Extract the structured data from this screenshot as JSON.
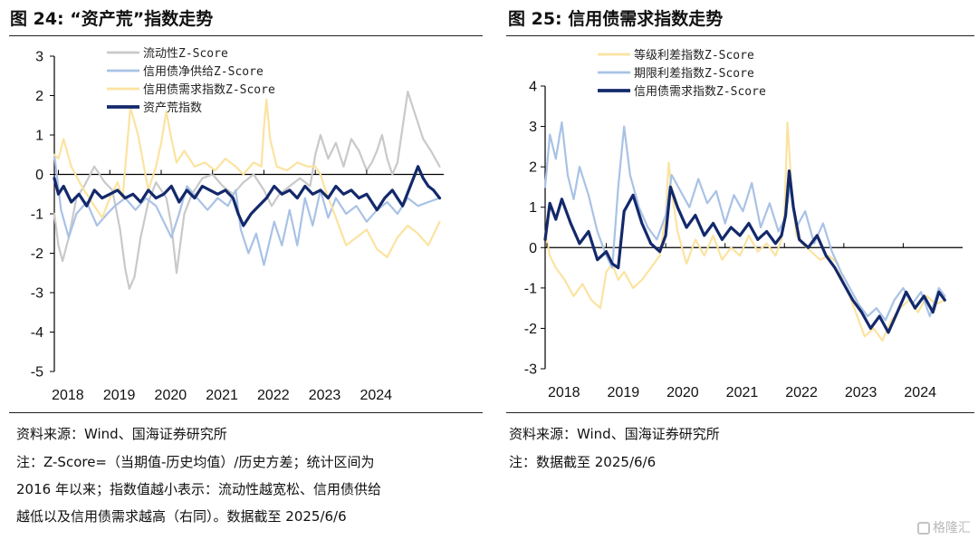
{
  "left": {
    "title": "图 24: “资产荒”指数走势",
    "source": "资料来源：Wind、国海证券研究所",
    "note": "注：Z-Score=（当期值-历史均值）/历史方差；统计区间为\n2016 年以来；指数值越小表示：流动性越宽松、信用债供给\n越低以及信用债需求越高（右同）。数据截至 2025/6/6"
  },
  "right": {
    "title": "图 25: 信用债需求指数走势",
    "source": "资料来源：Wind、国海证券研究所",
    "note": "注：数据截至 2025/6/6"
  },
  "watermark": {
    "text": "格隆汇"
  },
  "chart_data": [
    {
      "type": "line",
      "title": "“资产荒”指数走势",
      "x_ticks": [
        "2018",
        "2019",
        "2020",
        "2021",
        "2022",
        "2023",
        "2024"
      ],
      "x_range": [
        "2017-12",
        "2025-06"
      ],
      "ylim": [
        -5,
        3
      ],
      "y_ticks": [
        3,
        2,
        1,
        0,
        -1,
        -2,
        -3,
        -4,
        -5
      ],
      "zero_line": true,
      "legend_position": "top-center",
      "series": [
        {
          "name": "流动性Z-Score",
          "color": "#c9c9c9",
          "width": 2.2,
          "x": [
            2017.92,
            2018.0,
            2018.08,
            2018.2,
            2018.35,
            2018.5,
            2018.7,
            2018.9,
            2019.05,
            2019.2,
            2019.3,
            2019.38,
            2019.48,
            2019.6,
            2019.75,
            2019.9,
            2020.0,
            2020.1,
            2020.2,
            2020.3,
            2020.35,
            2020.45,
            2020.6,
            2020.8,
            2021.0,
            2021.2,
            2021.4,
            2021.6,
            2021.8,
            2022.0,
            2022.15,
            2022.3,
            2022.5,
            2022.7,
            2022.9,
            2023.0,
            2023.1,
            2023.25,
            2023.4,
            2023.55,
            2023.7,
            2023.85,
            2024.0,
            2024.1,
            2024.2,
            2024.3,
            2024.4,
            2024.5,
            2024.6,
            2024.7,
            2024.8,
            2024.95,
            2025.1,
            2025.25,
            2025.42
          ],
          "y": [
            -1.0,
            -1.8,
            -2.2,
            -1.6,
            -0.6,
            -0.3,
            0.2,
            -0.2,
            -0.4,
            -1.4,
            -2.4,
            -2.9,
            -2.6,
            -1.6,
            -0.7,
            -0.2,
            -0.4,
            -0.6,
            -1.3,
            -2.5,
            -2.0,
            -1.0,
            -0.5,
            -0.1,
            0.0,
            -0.3,
            -0.5,
            -0.2,
            0.0,
            -0.4,
            -0.8,
            -0.5,
            -0.3,
            -0.1,
            -0.3,
            0.5,
            1.0,
            0.4,
            0.8,
            0.2,
            0.9,
            0.6,
            0.1,
            0.3,
            0.6,
            1.0,
            0.4,
            0.0,
            0.3,
            1.2,
            2.1,
            1.5,
            0.9,
            0.6,
            0.2
          ]
        },
        {
          "name": "信用债净供给Z-Score",
          "color": "#a9c2e6",
          "width": 2.2,
          "x": [
            2017.92,
            2018.05,
            2018.2,
            2018.35,
            2018.55,
            2018.75,
            2018.95,
            2019.1,
            2019.3,
            2019.5,
            2019.7,
            2019.9,
            2020.05,
            2020.2,
            2020.35,
            2020.5,
            2020.7,
            2020.9,
            2021.1,
            2021.3,
            2021.45,
            2021.55,
            2021.7,
            2021.85,
            2022.0,
            2022.2,
            2022.35,
            2022.5,
            2022.65,
            2022.8,
            2022.95,
            2023.1,
            2023.25,
            2023.4,
            2023.6,
            2023.8,
            2024.0,
            2024.2,
            2024.4,
            2024.6,
            2024.8,
            2025.0,
            2025.2,
            2025.42
          ],
          "y": [
            0.5,
            -0.9,
            -1.6,
            -1.0,
            -0.7,
            -1.3,
            -1.0,
            -0.8,
            -0.6,
            -0.9,
            -0.6,
            -0.8,
            -1.2,
            -1.6,
            -1.0,
            -0.3,
            -0.6,
            -0.9,
            -0.6,
            -0.8,
            -0.4,
            -1.4,
            -2.0,
            -1.5,
            -2.3,
            -1.2,
            -1.8,
            -0.9,
            -1.8,
            -0.6,
            -1.3,
            -0.4,
            -1.1,
            -0.6,
            -1.0,
            -0.8,
            -1.2,
            -0.9,
            -0.7,
            -1.0,
            -0.6,
            -0.8,
            -0.7,
            -0.6
          ]
        },
        {
          "name": "信用债需求指数Z-Score",
          "color": "#fbe3a0",
          "width": 2.2,
          "x": [
            2017.92,
            2018.0,
            2018.1,
            2018.25,
            2018.45,
            2018.65,
            2018.85,
            2019.0,
            2019.15,
            2019.25,
            2019.4,
            2019.55,
            2019.75,
            2019.9,
            2020.0,
            2020.1,
            2020.2,
            2020.3,
            2020.45,
            2020.65,
            2020.85,
            2021.05,
            2021.25,
            2021.45,
            2021.6,
            2021.8,
            2021.95,
            2022.0,
            2022.05,
            2022.12,
            2022.25,
            2022.45,
            2022.65,
            2022.85,
            2023.0,
            2023.1,
            2023.2,
            2023.4,
            2023.6,
            2023.8,
            2024.0,
            2024.2,
            2024.4,
            2024.6,
            2024.8,
            2025.0,
            2025.2,
            2025.42
          ],
          "y": [
            0.5,
            0.4,
            0.9,
            0.2,
            -0.3,
            -0.7,
            -1.1,
            -0.6,
            -0.2,
            -0.6,
            1.7,
            1.0,
            -0.4,
            0.2,
            0.8,
            1.6,
            0.9,
            0.3,
            0.6,
            0.2,
            0.3,
            0.1,
            0.4,
            0.2,
            0.0,
            0.3,
            0.2,
            1.2,
            1.9,
            0.9,
            0.2,
            0.1,
            0.3,
            0.2,
            0.2,
            0.0,
            -0.4,
            -1.1,
            -1.8,
            -1.6,
            -1.4,
            -1.9,
            -2.1,
            -1.6,
            -1.3,
            -1.5,
            -1.8,
            -1.2
          ]
        },
        {
          "name": "资产荒指数",
          "color": "#13296b",
          "width": 3.2,
          "x": [
            2017.92,
            2018.0,
            2018.1,
            2018.25,
            2018.4,
            2018.55,
            2018.7,
            2018.85,
            2019.0,
            2019.15,
            2019.3,
            2019.45,
            2019.6,
            2019.75,
            2019.9,
            2020.05,
            2020.2,
            2020.35,
            2020.5,
            2020.65,
            2020.8,
            2020.95,
            2021.1,
            2021.25,
            2021.4,
            2021.5,
            2021.6,
            2021.75,
            2021.9,
            2022.05,
            2022.2,
            2022.35,
            2022.5,
            2022.65,
            2022.8,
            2022.95,
            2023.1,
            2023.25,
            2023.4,
            2023.55,
            2023.7,
            2023.85,
            2024.0,
            2024.1,
            2024.2,
            2024.35,
            2024.5,
            2024.6,
            2024.7,
            2024.85,
            2025.0,
            2025.1,
            2025.2,
            2025.3,
            2025.42
          ],
          "y": [
            -0.1,
            -0.5,
            -0.3,
            -0.7,
            -0.5,
            -0.8,
            -0.4,
            -0.6,
            -0.5,
            -0.4,
            -0.6,
            -0.5,
            -0.7,
            -0.4,
            -0.6,
            -0.5,
            -0.3,
            -0.7,
            -0.4,
            -0.6,
            -0.3,
            -0.4,
            -0.5,
            -0.4,
            -0.6,
            -1.0,
            -1.3,
            -1.0,
            -0.8,
            -0.6,
            -0.3,
            -0.5,
            -0.4,
            -0.6,
            -0.3,
            -0.5,
            -0.4,
            -0.6,
            -0.3,
            -0.5,
            -0.4,
            -0.6,
            -0.5,
            -0.7,
            -0.9,
            -0.6,
            -0.4,
            -0.6,
            -0.8,
            -0.3,
            0.2,
            -0.1,
            -0.3,
            -0.4,
            -0.6
          ]
        }
      ]
    },
    {
      "type": "line",
      "title": "信用债需求指数走势",
      "x_ticks": [
        "2018",
        "2019",
        "2020",
        "2021",
        "2022",
        "2023",
        "2024"
      ],
      "x_range": [
        "2017-12",
        "2025-06"
      ],
      "ylim": [
        -3,
        4
      ],
      "y_ticks": [
        4,
        3,
        2,
        1,
        0,
        -1,
        -2,
        -3
      ],
      "zero_line": true,
      "legend_position": "top-center",
      "series": [
        {
          "name": "等级利差指数Z-Score",
          "color": "#fbe3a0",
          "width": 2.2,
          "x": [
            2017.97,
            2018.05,
            2018.15,
            2018.3,
            2018.45,
            2018.6,
            2018.75,
            2018.9,
            2019.0,
            2019.1,
            2019.2,
            2019.3,
            2019.45,
            2019.6,
            2019.75,
            2019.9,
            2020.0,
            2020.05,
            2020.12,
            2020.2,
            2020.35,
            2020.5,
            2020.65,
            2020.8,
            2020.95,
            2021.1,
            2021.25,
            2021.4,
            2021.55,
            2021.7,
            2021.85,
            2021.95,
            2022.0,
            2022.05,
            2022.12,
            2022.2,
            2022.3,
            2022.45,
            2022.6,
            2022.75,
            2022.9,
            2023.0,
            2023.1,
            2023.2,
            2023.35,
            2023.5,
            2023.65,
            2023.8,
            2023.95,
            2024.1,
            2024.25,
            2024.4,
            2024.55,
            2024.7
          ],
          "y": [
            0.4,
            -0.2,
            -0.5,
            -0.8,
            -1.2,
            -0.9,
            -1.3,
            -1.5,
            -0.6,
            -0.4,
            -0.8,
            -0.6,
            -1.0,
            -0.8,
            -0.5,
            -0.2,
            0.8,
            2.1,
            1.2,
            0.4,
            -0.4,
            0.2,
            -0.2,
            0.3,
            -0.3,
            0.0,
            -0.2,
            0.3,
            -0.1,
            0.1,
            -0.2,
            0.2,
            0.9,
            3.1,
            1.5,
            0.3,
            0.1,
            -0.1,
            -0.3,
            -0.2,
            -0.4,
            -0.9,
            -1.2,
            -1.6,
            -2.2,
            -2.0,
            -2.3,
            -1.8,
            -1.5,
            -1.3,
            -1.6,
            -1.2,
            -1.4,
            -1.3
          ]
        },
        {
          "name": "期限利差指数Z-Score",
          "color": "#a9c2e6",
          "width": 2.2,
          "x": [
            2017.97,
            2018.05,
            2018.15,
            2018.25,
            2018.35,
            2018.45,
            2018.55,
            2018.7,
            2018.85,
            2019.0,
            2019.1,
            2019.2,
            2019.3,
            2019.4,
            2019.55,
            2019.7,
            2019.85,
            2020.0,
            2020.1,
            2020.25,
            2020.4,
            2020.55,
            2020.7,
            2020.85,
            2021.0,
            2021.15,
            2021.3,
            2021.45,
            2021.6,
            2021.75,
            2021.9,
            2022.0,
            2022.1,
            2022.2,
            2022.35,
            2022.5,
            2022.65,
            2022.8,
            2022.95,
            2023.1,
            2023.25,
            2023.4,
            2023.55,
            2023.7,
            2023.85,
            2024.0,
            2024.15,
            2024.3,
            2024.45,
            2024.6,
            2024.7
          ],
          "y": [
            1.5,
            2.8,
            2.2,
            3.1,
            1.8,
            1.2,
            2.0,
            1.3,
            0.4,
            -0.2,
            -0.5,
            1.5,
            3.0,
            1.8,
            1.0,
            0.5,
            0.2,
            0.8,
            1.8,
            1.4,
            1.0,
            1.7,
            1.1,
            1.4,
            0.6,
            1.3,
            0.9,
            1.6,
            0.5,
            1.1,
            0.4,
            0.7,
            1.5,
            0.5,
            0.9,
            0.1,
            0.6,
            -0.1,
            -0.6,
            -1.0,
            -1.4,
            -1.7,
            -1.5,
            -1.8,
            -1.3,
            -1.0,
            -1.4,
            -1.1,
            -1.7,
            -1.0,
            -1.2
          ]
        },
        {
          "name": "信用债需求指数Z-Score",
          "color": "#13296b",
          "width": 3.2,
          "x": [
            2017.97,
            2018.05,
            2018.15,
            2018.25,
            2018.4,
            2018.55,
            2018.7,
            2018.85,
            2019.0,
            2019.1,
            2019.2,
            2019.3,
            2019.45,
            2019.6,
            2019.75,
            2019.9,
            2020.0,
            2020.08,
            2020.2,
            2020.35,
            2020.5,
            2020.65,
            2020.8,
            2020.95,
            2021.1,
            2021.25,
            2021.4,
            2021.55,
            2021.7,
            2021.85,
            2021.95,
            2022.02,
            2022.08,
            2022.15,
            2022.25,
            2022.4,
            2022.55,
            2022.7,
            2022.85,
            2023.0,
            2023.15,
            2023.3,
            2023.45,
            2023.6,
            2023.75,
            2023.9,
            2024.05,
            2024.2,
            2024.35,
            2024.5,
            2024.6,
            2024.7
          ],
          "y": [
            0.2,
            1.1,
            0.7,
            1.2,
            0.6,
            0.1,
            0.4,
            -0.3,
            -0.1,
            -0.4,
            -0.5,
            0.9,
            1.3,
            0.6,
            0.1,
            -0.1,
            0.3,
            1.5,
            1.0,
            0.5,
            0.8,
            0.3,
            0.6,
            0.2,
            0.5,
            0.3,
            0.6,
            0.2,
            0.4,
            0.1,
            0.3,
            0.8,
            1.9,
            1.0,
            0.2,
            0.0,
            0.3,
            -0.2,
            -0.5,
            -0.9,
            -1.3,
            -1.6,
            -2.0,
            -1.7,
            -2.1,
            -1.6,
            -1.1,
            -1.5,
            -1.2,
            -1.6,
            -1.1,
            -1.3
          ]
        }
      ]
    }
  ]
}
